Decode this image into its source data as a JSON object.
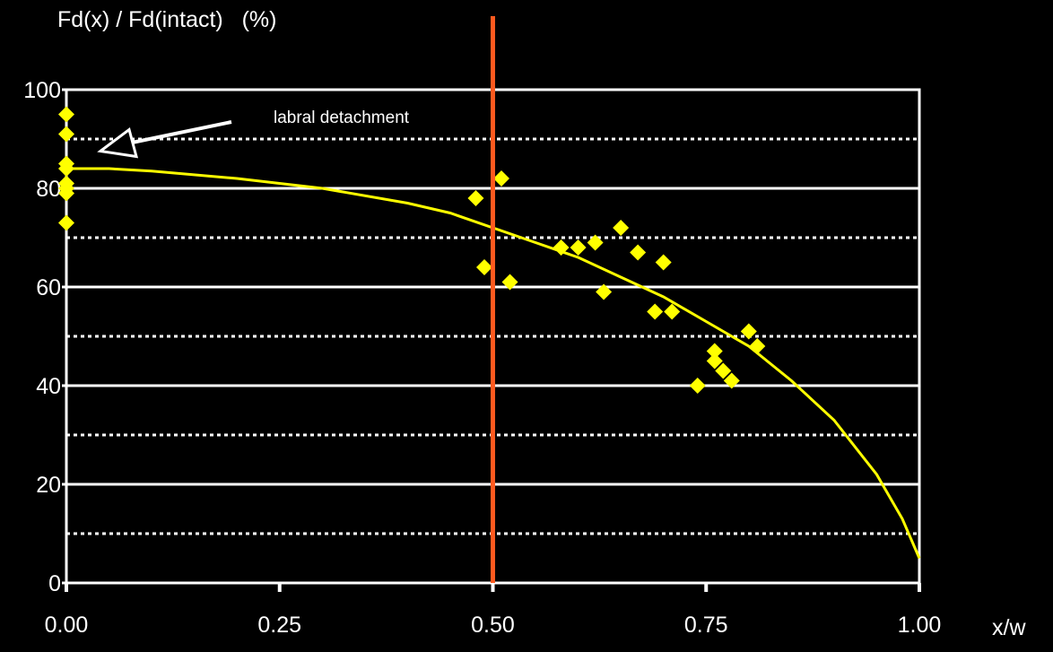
{
  "chart_data": {
    "type": "scatter",
    "ylabel": "Fd(x) / Fd(intact)   (%)",
    "xlabel": "x/w",
    "xlim": [
      0,
      1
    ],
    "ylim": [
      0,
      100
    ],
    "x_ticks": [
      "0.00",
      "0.25",
      "0.50",
      "0.75",
      "1.00"
    ],
    "x_tick_values": [
      0,
      0.25,
      0.5,
      0.75,
      1.0
    ],
    "y_ticks": [
      "0",
      "20",
      "40",
      "60",
      "80",
      "100"
    ],
    "y_tick_values": [
      0,
      20,
      40,
      60,
      80,
      100
    ],
    "grid": {
      "solid_every": 20,
      "dotted_midlines": [
        10,
        30,
        50,
        70,
        90
      ]
    },
    "vertical_marker": {
      "x": 0.5,
      "color": "#ff5a1f"
    },
    "annotation": {
      "text": "labral detachment",
      "arrow_target": [
        0.0,
        87
      ]
    },
    "series": [
      {
        "type": "scatter",
        "marker": "diamond",
        "color": "#ffff00",
        "points": [
          [
            0.0,
            95
          ],
          [
            0.0,
            91
          ],
          [
            0.0,
            85
          ],
          [
            0.0,
            84
          ],
          [
            0.0,
            81
          ],
          [
            0.0,
            80
          ],
          [
            0.0,
            79
          ],
          [
            0.0,
            73
          ],
          [
            0.48,
            78
          ],
          [
            0.49,
            64
          ],
          [
            0.51,
            82
          ],
          [
            0.52,
            61
          ],
          [
            0.58,
            68
          ],
          [
            0.6,
            68
          ],
          [
            0.62,
            69
          ],
          [
            0.63,
            59
          ],
          [
            0.65,
            72
          ],
          [
            0.67,
            67
          ],
          [
            0.69,
            55
          ],
          [
            0.7,
            65
          ],
          [
            0.71,
            55
          ],
          [
            0.74,
            40
          ],
          [
            0.76,
            45
          ],
          [
            0.76,
            47
          ],
          [
            0.77,
            43
          ],
          [
            0.78,
            41
          ],
          [
            0.8,
            51
          ],
          [
            0.81,
            48
          ]
        ]
      },
      {
        "type": "line",
        "color": "#ffff00",
        "x": [
          0.0,
          0.05,
          0.1,
          0.2,
          0.3,
          0.4,
          0.45,
          0.5,
          0.55,
          0.6,
          0.65,
          0.7,
          0.75,
          0.8,
          0.85,
          0.9,
          0.95,
          0.98,
          1.0
        ],
        "y": [
          84,
          84,
          83.5,
          82,
          80,
          77,
          75,
          72,
          69,
          66,
          62,
          58,
          53,
          48,
          41,
          33,
          22,
          13,
          5
        ]
      }
    ]
  }
}
